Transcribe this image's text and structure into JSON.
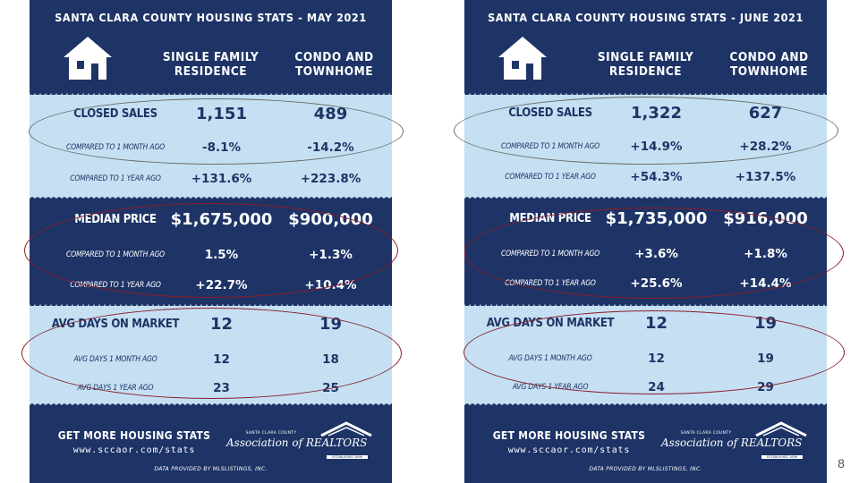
{
  "columns": {
    "sfr": "SINGLE FAMILY RESIDENCE",
    "condo": "CONDO AND TOWNHOME"
  },
  "cards": [
    {
      "title": "SANTA CLARA COUNTY HOUSING STATS - MAY 2021",
      "closed_sales": {
        "label": "CLOSED SALES",
        "sfr": "1,151",
        "condo": "489",
        "m_label": "COMPARED TO 1 MONTH AGO",
        "m_sfr": "-8.1%",
        "m_condo": "-14.2%",
        "y_label": "COMPARED TO 1 YEAR AGO",
        "y_sfr": "+131.6%",
        "y_condo": "+223.8%"
      },
      "median_price": {
        "label": "MEDIAN PRICE",
        "sfr": "$1,675,000",
        "condo": "$900,000",
        "m_label": "COMPARED TO 1 MONTH AGO",
        "m_sfr": "1.5%",
        "m_condo": "+1.3%",
        "y_label": "COMPARED TO 1 YEAR AGO",
        "y_sfr": "+22.7%",
        "y_condo": "+10.4%"
      },
      "avg_days": {
        "label": "AVG DAYS ON MARKET",
        "sfr": "12",
        "condo": "19",
        "m_label": "AVG DAYS 1 MONTH AGO",
        "m_sfr": "12",
        "m_condo": "18",
        "y_label": "AVG DAYS 1 YEAR AGO",
        "y_sfr": "23",
        "y_condo": "25"
      }
    },
    {
      "title": "SANTA CLARA COUNTY HOUSING STATS - JUNE 2021",
      "closed_sales": {
        "label": "CLOSED SALES",
        "sfr": "1,322",
        "condo": "627",
        "m_label": "COMPARED TO 1 MONTH AGO",
        "m_sfr": "+14.9%",
        "m_condo": "+28.2%",
        "y_label": "COMPARED TO 1 YEAR AGO",
        "y_sfr": "+54.3%",
        "y_condo": "+137.5%"
      },
      "median_price": {
        "label": "MEDIAN PRICE",
        "sfr": "$1,735,000",
        "condo": "$916,000",
        "m_label": "COMPARED TO 1 MONTH AGO",
        "m_sfr": "+3.6%",
        "m_condo": "+1.8%",
        "y_label": "COMPARED TO 1 YEAR AGO",
        "y_sfr": "+25.6%",
        "y_condo": "+14.4%"
      },
      "avg_days": {
        "label": "AVG DAYS ON MARKET",
        "sfr": "12",
        "condo": "19",
        "m_label": "AVG DAYS 1 MONTH AGO",
        "m_sfr": "12",
        "m_condo": "19",
        "y_label": "AVG DAYS 1 YEAR AGO",
        "y_sfr": "24",
        "y_condo": "29"
      }
    }
  ],
  "footer": {
    "cta": "GET MORE HOUSING STATS",
    "url": "www.sccaor.com/stats",
    "assoc_county": "SANTA CLARA COUNTY",
    "assoc_name": "Association of REALTORS",
    "assoc_estab": "ESTABLISHED 1896",
    "data_credit": "DATA PROVIDED BY MLSLISTINGS, INC."
  },
  "page_number": "8",
  "colors": {
    "navy": "#1e3466",
    "light_blue": "#c4e0f2",
    "annotation_gray": "#6b6b6b",
    "annotation_red": "#8a1c2a"
  }
}
